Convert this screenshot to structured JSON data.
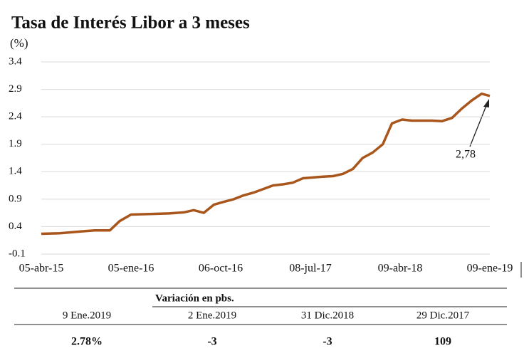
{
  "chart_data": {
    "type": "line",
    "title": "Tasa de Interés Libor a 3 meses",
    "y_label": "(%)",
    "color": "#a9561d",
    "grid": true,
    "ylim": [
      -0.1,
      3.4
    ],
    "yticks": [
      -0.1,
      0.4,
      0.9,
      1.4,
      1.9,
      2.4,
      2.9,
      3.4
    ],
    "xlim": [
      "2015-04-05",
      "2019-01-09"
    ],
    "xticks": [
      {
        "value": "2015-04-05",
        "label": "05-abr-15"
      },
      {
        "value": "2016-01-05",
        "label": "05-ene-16"
      },
      {
        "value": "2016-10-06",
        "label": "06-oct-16"
      },
      {
        "value": "2017-07-08",
        "label": "08-jul-17"
      },
      {
        "value": "2018-04-09",
        "label": "09-abr-18"
      },
      {
        "value": "2019-01-09",
        "label": "09-ene-19"
      }
    ],
    "x": [
      "2015-04-05",
      "2015-06-01",
      "2015-08-01",
      "2015-09-15",
      "2015-11-01",
      "2015-12-01",
      "2016-01-05",
      "2016-03-01",
      "2016-05-01",
      "2016-06-15",
      "2016-07-15",
      "2016-08-15",
      "2016-09-15",
      "2016-10-15",
      "2016-11-15",
      "2016-12-15",
      "2017-01-15",
      "2017-03-15",
      "2017-04-15",
      "2017-05-15",
      "2017-06-15",
      "2017-08-15",
      "2017-09-15",
      "2017-10-15",
      "2017-11-15",
      "2017-12-15",
      "2018-01-15",
      "2018-02-15",
      "2018-03-15",
      "2018-04-15",
      "2018-05-15",
      "2018-06-15",
      "2018-07-15",
      "2018-08-15",
      "2018-09-15",
      "2018-10-15",
      "2018-11-15",
      "2018-12-15",
      "2019-01-09"
    ],
    "values": [
      0.27,
      0.28,
      0.31,
      0.33,
      0.33,
      0.5,
      0.62,
      0.63,
      0.64,
      0.66,
      0.7,
      0.65,
      0.8,
      0.85,
      0.9,
      0.97,
      1.02,
      1.15,
      1.17,
      1.2,
      1.28,
      1.31,
      1.32,
      1.36,
      1.45,
      1.65,
      1.75,
      1.9,
      2.28,
      2.35,
      2.33,
      2.33,
      2.33,
      2.32,
      2.38,
      2.55,
      2.7,
      2.82,
      2.78
    ],
    "annotation": "2,78"
  },
  "table": {
    "title": "Variación en pbs.",
    "headers": [
      "9 Ene.2019",
      "2 Ene.2019",
      "31 Dic.2018",
      "29 Dic.2017"
    ],
    "row": [
      "2.78%",
      "-3",
      "-3",
      "109"
    ]
  }
}
